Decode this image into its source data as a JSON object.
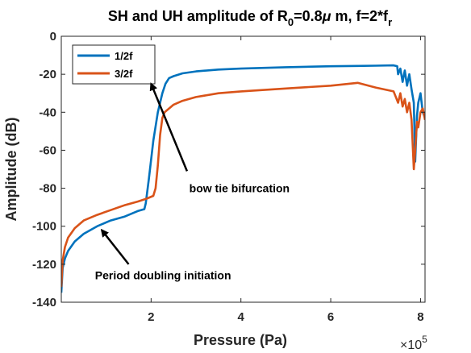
{
  "chart_data": {
    "type": "line",
    "title_main": "SH and UH amplitude of R",
    "title_sub": "0",
    "title_rest": "=0.8",
    "title_mu": "μ",
    "title_end": " m, f=2*f",
    "title_sub2": "r",
    "xlabel": "Pressure (Pa)",
    "ylabel": "Amplitude (dB)",
    "x_multiplier": "×10",
    "x_multiplier_exp": "5",
    "xlim": [
      0.0,
      8.1
    ],
    "ylim": [
      -140,
      0
    ],
    "xticks": [
      2,
      4,
      6,
      8
    ],
    "xtick_labels": [
      "2",
      "4",
      "6",
      "8"
    ],
    "yticks": [
      0,
      -20,
      -40,
      -60,
      -80,
      -100,
      -120,
      -140
    ],
    "ytick_labels": [
      "0",
      "-20",
      "-40",
      "-60",
      "-80",
      "-100",
      "-120",
      "-140"
    ],
    "grid": false,
    "legend_position": "top-left",
    "series": [
      {
        "name": "1/2f",
        "color": "#0072BD",
        "x": [
          0.0,
          0.03,
          0.08,
          0.15,
          0.3,
          0.5,
          0.8,
          1.1,
          1.4,
          1.7,
          1.85,
          1.88,
          1.95,
          2.05,
          2.15,
          2.25,
          2.32,
          2.4,
          2.5,
          2.7,
          3.0,
          3.5,
          4.0,
          5.0,
          6.0,
          6.6,
          7.0,
          7.4,
          7.48,
          7.5,
          7.55,
          7.6,
          7.65,
          7.7,
          7.75,
          7.8,
          7.85,
          7.88,
          7.92,
          7.95,
          8.0,
          8.05,
          8.1
        ],
        "y": [
          -135,
          -122,
          -117,
          -113,
          -108,
          -104,
          -100,
          -97,
          -95,
          -92,
          -91,
          -88,
          -75,
          -55,
          -40,
          -30,
          -25,
          -22,
          -21,
          -19.5,
          -18.5,
          -17.5,
          -17,
          -16.3,
          -15.8,
          -15.6,
          -15.5,
          -15.3,
          -15.8,
          -20,
          -17,
          -24,
          -18,
          -26,
          -20,
          -28,
          -35,
          -66,
          -42,
          -35,
          -30,
          -40,
          -43
        ]
      },
      {
        "name": "3/2f",
        "color": "#D95319",
        "x": [
          0.0,
          0.03,
          0.08,
          0.15,
          0.3,
          0.5,
          0.8,
          1.1,
          1.4,
          1.7,
          1.9,
          2.05,
          2.1,
          2.15,
          2.2,
          2.25,
          2.3,
          2.4,
          2.5,
          2.7,
          3.0,
          3.5,
          4.0,
          5.0,
          6.0,
          6.6,
          7.0,
          7.4,
          7.45,
          7.5,
          7.55,
          7.6,
          7.65,
          7.7,
          7.75,
          7.8,
          7.85,
          7.88,
          7.92,
          7.95,
          8.0,
          8.05,
          8.1
        ],
        "y": [
          -132,
          -118,
          -111,
          -106,
          -101,
          -97,
          -94,
          -91.5,
          -89,
          -87,
          -85.5,
          -84,
          -80,
          -68,
          -52,
          -43,
          -40,
          -38,
          -36,
          -34,
          -32,
          -30,
          -29,
          -27.5,
          -26,
          -24.5,
          -27,
          -29,
          -32,
          -35,
          -30,
          -37,
          -33,
          -40,
          -35,
          -44,
          -70,
          -60,
          -45,
          -48,
          -40,
          -38,
          -44
        ]
      }
    ],
    "annotations": [
      {
        "text": "bow tie bifurcation",
        "x": 2.85,
        "y": -82,
        "arrow_from": [
          2.8,
          -71
        ],
        "arrow_to": [
          2.0,
          -25
        ]
      },
      {
        "text": "Period doubling initiation",
        "x": 0.75,
        "y": -128,
        "arrow_from": [
          1.5,
          -120
        ],
        "arrow_to": [
          0.9,
          -102
        ]
      }
    ]
  }
}
